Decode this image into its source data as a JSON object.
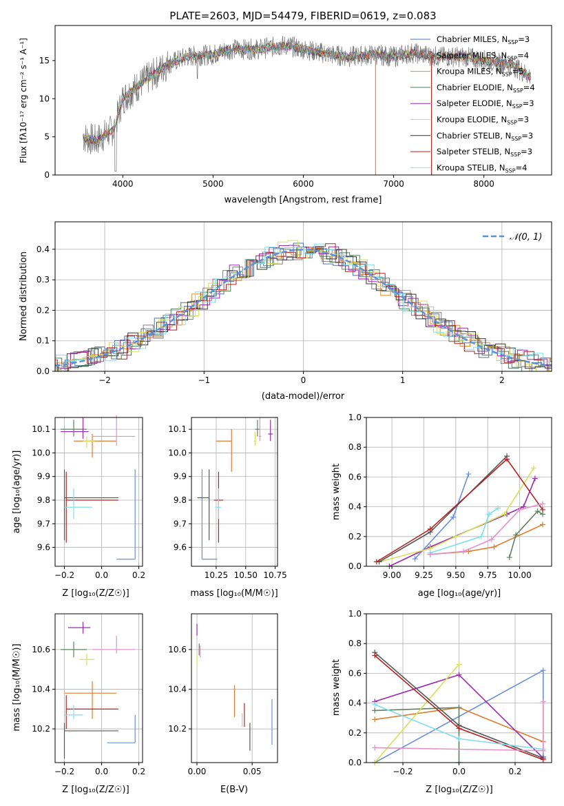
{
  "chart_data": [
    {
      "type": "line",
      "title": "PLATE=2603, MJD=54479, FIBERID=0619, z=0.083",
      "xlabel": "wavelength [Angstrom, rest frame]",
      "ylabel": "Flux [fλ10⁻¹⁷ erg cm⁻² s⁻¹ A⁻¹]",
      "xlim": [
        3250,
        8750
      ],
      "ylim": [
        0,
        19.6
      ],
      "xticks": [
        "4000",
        "5000",
        "6000",
        "7000",
        "8000"
      ],
      "yticks": [
        "0",
        "5",
        "10",
        "15"
      ],
      "legend": "upper right",
      "series": [
        {
          "name": "Chabrier MILES, N_SSP=3",
          "color": "#4c72b0"
        },
        {
          "name": "Salpeter MILES, N_SSP=4",
          "color": "#7f7f7f"
        },
        {
          "name": "Kroupa MILES, N_SSP=5",
          "color": "#e08b2c"
        },
        {
          "name": "Chabrier ELODIE, N_SSP=4",
          "color": "#4e7d5b"
        },
        {
          "name": "Salpeter ELODIE, N_SSP=3",
          "color": "#9c27b0"
        },
        {
          "name": "Kroupa ELODIE, N_SSP=3",
          "color": "#d4e157"
        },
        {
          "name": "Chabrier STELIB, N_SSP=3",
          "color": "#333333"
        },
        {
          "name": "Salpeter STELIB, N_SSP=3",
          "color": "#b22222"
        },
        {
          "name": "Kroupa STELIB, N_SSP=4",
          "color": "#80deea"
        }
      ],
      "x": [
        3550,
        3700,
        3900,
        4000,
        4200,
        4500,
        4700,
        5000,
        5200,
        5500,
        5800,
        6000,
        6300,
        6500,
        6800,
        7000,
        7200,
        7500,
        7800,
        8000,
        8300,
        8500
      ],
      "values": [
        5,
        4.5,
        6,
        10,
        12,
        14.5,
        15.5,
        15.8,
        16.5,
        16.5,
        17,
        16.5,
        15.8,
        15.5,
        15.8,
        15.5,
        16,
        15.5,
        15.5,
        15,
        14.5,
        13
      ]
    },
    {
      "type": "bar",
      "xlabel": "(data-model)/error",
      "ylabel": "Normed distribution",
      "xlim": [
        -2.5,
        2.5
      ],
      "ylim": [
        0,
        0.49
      ],
      "xticks": [
        "−2",
        "−1",
        "0",
        "1",
        "2"
      ],
      "yticks": [
        "0.0",
        "0.1",
        "0.2",
        "0.3",
        "0.4"
      ],
      "legend_label": "𝒩(0, 1)",
      "legend": "upper right",
      "gaussian": {
        "mean": 0,
        "sigma": 1
      }
    },
    {
      "type": "scatter",
      "xlabel": "Z [log₁₀(Z/Z☉)]",
      "ylabel": "age  [log₁₀(age/yr)]",
      "xlim": [
        -0.25,
        0.22
      ],
      "ylim": [
        9.52,
        10.15
      ],
      "xticks": [
        "−0.2",
        "0.0",
        "0.2"
      ],
      "yticks": [
        "9.6",
        "9.7",
        "9.8",
        "9.9",
        "10.0",
        "10.1"
      ],
      "points": [
        {
          "color": "#6a8fd8",
          "x": 0.18,
          "y": 9.55,
          "xerr": [
            0.1,
            0
          ],
          "yerr": [
            0,
            0.38
          ]
        },
        {
          "color": "#e07b2c",
          "x": -0.05,
          "y": 10.05,
          "xerr": [
            0.1,
            0.13
          ],
          "yerr": [
            0.07,
            0.03
          ]
        },
        {
          "color": "#5e8061",
          "x": -0.15,
          "y": 10.1,
          "xerr": [
            0.07,
            0.07
          ],
          "yerr": [
            0.03,
            0.04
          ]
        },
        {
          "color": "#9c27b0",
          "x": -0.1,
          "y": 10.09,
          "xerr": [
            0.12,
            0.03
          ],
          "yerr": [
            0.03,
            0.06
          ]
        },
        {
          "color": "#d4e157",
          "x": -0.08,
          "y": 10.05,
          "xerr": [
            0.02,
            0.04
          ],
          "yerr": [
            0.03,
            0.02
          ]
        },
        {
          "color": "#555555",
          "x": -0.2,
          "y": 9.81,
          "xerr": [
            0.0,
            0.29
          ],
          "yerr": [
            0.18,
            0.12
          ]
        },
        {
          "color": "#b22222",
          "x": -0.19,
          "y": 9.8,
          "xerr": [
            0.0,
            0.28
          ],
          "yerr": [
            0.18,
            0.12
          ]
        },
        {
          "color": "#80deea",
          "x": -0.15,
          "y": 9.77,
          "xerr": [
            0.05,
            0.1
          ],
          "yerr": [
            0.05,
            0.08
          ]
        },
        {
          "color": "#e58fc8",
          "x": 0.08,
          "y": 10.07,
          "xerr": [
            0.13,
            0.1
          ],
          "yerr": [
            0.04,
            0.09
          ]
        }
      ]
    },
    {
      "type": "scatter",
      "xlabel": "mass [log₁₀(M/M☉)]",
      "ylabel": "",
      "xlim": [
        10.04,
        10.77
      ],
      "ylim": [
        9.52,
        10.15
      ],
      "xticks": [
        "10.25",
        "10.50",
        "10.75"
      ],
      "yticks": [
        "9.6",
        "9.7",
        "9.8",
        "9.9",
        "10.0",
        "10.1"
      ],
      "points": [
        {
          "color": "#6a8fd8",
          "x": 10.13,
          "y": 9.55,
          "xerr": [
            0,
            0.13
          ],
          "yerr": [
            0,
            0.38
          ]
        },
        {
          "color": "#e07b2c",
          "x": 10.38,
          "y": 10.05,
          "xerr": [
            0.13,
            0
          ],
          "yerr": [
            0.13,
            0.05
          ]
        },
        {
          "color": "#5e8061",
          "x": 10.6,
          "y": 10.1,
          "xerr": [
            0.02,
            0.02
          ],
          "yerr": [
            0.03,
            0.04
          ]
        },
        {
          "color": "#9c27b0",
          "x": 10.71,
          "y": 10.08,
          "xerr": [
            0.02,
            0.02
          ],
          "yerr": [
            0.03,
            0.06
          ]
        },
        {
          "color": "#d4e157",
          "x": 10.58,
          "y": 10.05,
          "xerr": [
            0.01,
            0.01
          ],
          "yerr": [
            0.02,
            0.04
          ]
        },
        {
          "color": "#555555",
          "x": 10.19,
          "y": 9.81,
          "xerr": [
            0.1,
            0
          ],
          "yerr": [
            0.18,
            0.12
          ]
        },
        {
          "color": "#b22222",
          "x": 10.27,
          "y": 9.8,
          "xerr": [
            0.04,
            0.04
          ],
          "yerr": [
            0.18,
            0.12
          ]
        },
        {
          "color": "#80deea",
          "x": 10.27,
          "y": 9.77,
          "xerr": [
            0.03,
            0.02
          ],
          "yerr": [
            0.05,
            0.08
          ]
        },
        {
          "color": "#e58fc8",
          "x": 10.62,
          "y": 10.07,
          "xerr": [
            0.01,
            0.01
          ],
          "yerr": [
            0.02,
            0.08
          ]
        }
      ]
    },
    {
      "type": "line",
      "xlabel": "age  [log₁₀(age/yr)]",
      "ylabel": "mass weight",
      "xlim": [
        8.8,
        10.25
      ],
      "ylim": [
        0,
        1.0
      ],
      "xticks": [
        "9.00",
        "9.25",
        "9.50",
        "9.75",
        "10.00"
      ],
      "yticks": [
        "0.0",
        "0.2",
        "0.4",
        "0.6",
        "0.8",
        "1.0"
      ],
      "series": [
        {
          "color": "#6a8fd8",
          "x": [
            9.18,
            9.48,
            9.6
          ],
          "y": [
            0.05,
            0.33,
            0.62
          ]
        },
        {
          "color": "#e07b2c",
          "x": [
            9.3,
            9.6,
            9.8,
            10.18
          ],
          "y": [
            0.08,
            0.1,
            0.13,
            0.28
          ]
        },
        {
          "color": "#5e8061",
          "x": [
            9.92,
            9.97,
            10.14,
            10.18
          ],
          "y": [
            0.06,
            0.21,
            0.37,
            0.35
          ]
        },
        {
          "color": "#9c27b0",
          "x": [
            8.98,
            9.3,
            9.9,
            10.03,
            10.12
          ],
          "y": [
            0.0,
            0.13,
            0.35,
            0.4,
            0.59
          ]
        },
        {
          "color": "#d4e157",
          "x": [
            8.9,
            9.3,
            9.5,
            9.88,
            10.11
          ],
          "y": [
            0.03,
            0.12,
            0.2,
            0.35,
            0.66
          ]
        },
        {
          "color": "#555555",
          "x": [
            8.9,
            9.3,
            9.9
          ],
          "y": [
            0.03,
            0.23,
            0.74
          ]
        },
        {
          "color": "#b22222",
          "x": [
            8.88,
            9.3,
            9.9,
            10.18
          ],
          "y": [
            0.03,
            0.25,
            0.72,
            0.38
          ]
        },
        {
          "color": "#80deea",
          "x": [
            9.3,
            9.7,
            9.76,
            9.83
          ],
          "y": [
            0.09,
            0.2,
            0.35,
            0.39
          ]
        },
        {
          "color": "#e58fc8",
          "x": [
            9.3,
            9.56,
            9.78,
            10.0,
            10.18
          ],
          "y": [
            0.08,
            0.1,
            0.18,
            0.38,
            0.42
          ]
        }
      ]
    },
    {
      "type": "scatter",
      "xlabel": "Z [log₁₀(Z/Z☉)]",
      "ylabel": "mass [log₁₀(M/M☉)]",
      "xlim": [
        -0.25,
        0.22
      ],
      "ylim": [
        10.03,
        10.78
      ],
      "xticks": [
        "−0.2",
        "0.0",
        "0.2"
      ],
      "yticks": [
        "10.2",
        "10.4",
        "10.6"
      ],
      "points": [
        {
          "color": "#6a8fd8",
          "x": 0.18,
          "y": 10.13,
          "xerr": [
            0.15,
            0
          ],
          "yerr": [
            0,
            0.14
          ]
        },
        {
          "color": "#e07b2c",
          "x": -0.05,
          "y": 10.38,
          "xerr": [
            0.15,
            0.13
          ],
          "yerr": [
            0.13,
            0.06
          ]
        },
        {
          "color": "#5e8061",
          "x": -0.15,
          "y": 10.6,
          "xerr": [
            0.07,
            0.07
          ],
          "yerr": [
            0.04,
            0.04
          ]
        },
        {
          "color": "#9c27b0",
          "x": -0.1,
          "y": 10.71,
          "xerr": [
            0.08,
            0.04
          ],
          "yerr": [
            0.03,
            0.03
          ]
        },
        {
          "color": "#d4e157",
          "x": -0.08,
          "y": 10.55,
          "xerr": [
            0.04,
            0.04
          ],
          "yerr": [
            0.03,
            0.03
          ]
        },
        {
          "color": "#555555",
          "x": -0.2,
          "y": 10.19,
          "xerr": [
            0.0,
            0.29
          ],
          "yerr": [
            0.14,
            0.04
          ]
        },
        {
          "color": "#b22222",
          "x": -0.19,
          "y": 10.3,
          "xerr": [
            0.0,
            0.28
          ],
          "yerr": [
            0.1,
            0.07
          ]
        },
        {
          "color": "#80deea",
          "x": -0.15,
          "y": 10.27,
          "xerr": [
            0.05,
            0.05
          ],
          "yerr": [
            0.02,
            0.05
          ]
        },
        {
          "color": "#e58fc8",
          "x": 0.08,
          "y": 10.6,
          "xerr": [
            0.13,
            0.1
          ],
          "yerr": [
            0.02,
            0.07
          ]
        }
      ]
    },
    {
      "type": "scatter",
      "xlabel": "E(B-V)",
      "ylabel": "",
      "xlim": [
        -0.005,
        0.073
      ],
      "ylim": [
        10.03,
        10.78
      ],
      "xticks": [
        "0.00",
        "0.05"
      ],
      "yticks": [
        "10.2",
        "10.4",
        "10.6"
      ],
      "points": [
        {
          "color": "#6a8fd8",
          "x": 0.068,
          "y": 10.2,
          "yerr": [
            0.08,
            0.15
          ]
        },
        {
          "color": "#e07b2c",
          "x": 0.034,
          "y": 10.34,
          "yerr": [
            0.08,
            0.08
          ]
        },
        {
          "color": "#5e8061",
          "x": 0.002,
          "y": 10.6,
          "yerr": [
            0.03,
            0.03
          ]
        },
        {
          "color": "#9c27b0",
          "x": 0.0,
          "y": 10.7,
          "yerr": [
            0.03,
            0.03
          ]
        },
        {
          "color": "#d4e157",
          "x": 0.0,
          "y": 10.55,
          "yerr": [
            0.03,
            0.03
          ]
        },
        {
          "color": "#555555",
          "x": 0.048,
          "y": 10.15,
          "yerr": [
            0.06,
            0.08
          ]
        },
        {
          "color": "#b22222",
          "x": 0.043,
          "y": 10.27,
          "yerr": [
            0.06,
            0.06
          ]
        },
        {
          "color": "#80deea",
          "x": 0.041,
          "y": 10.24,
          "yerr": [
            0.03,
            0.04
          ]
        },
        {
          "color": "#e58fc8",
          "x": 0.003,
          "y": 10.59,
          "yerr": [
            0.03,
            0.03
          ]
        }
      ]
    },
    {
      "type": "line",
      "xlabel": "Z [log₁₀(Z/Z☉)]",
      "ylabel": "mass weight",
      "xlim": [
        -0.33,
        0.33
      ],
      "ylim": [
        0,
        1.0
      ],
      "xticks": [
        "−0.2",
        "0.0",
        "0.2"
      ],
      "yticks": [
        "0.0",
        "0.2",
        "0.4",
        "0.6",
        "0.8",
        "1.0"
      ],
      "series": [
        {
          "color": "#6a8fd8",
          "x": [
            -0.3,
            0.3,
            0.3
          ],
          "y": [
            0.0,
            0.62,
            0.04
          ]
        },
        {
          "color": "#e07b2c",
          "x": [
            -0.3,
            0.0,
            0.3
          ],
          "y": [
            0.29,
            0.37,
            0.14
          ]
        },
        {
          "color": "#5e8061",
          "x": [
            -0.3,
            0.0,
            0.0
          ],
          "y": [
            0.35,
            0.37,
            0.0
          ]
        },
        {
          "color": "#9c27b0",
          "x": [
            -0.3,
            0.0,
            0.3
          ],
          "y": [
            0.41,
            0.59,
            0.03
          ]
        },
        {
          "color": "#d4e157",
          "x": [
            -0.3,
            0.0
          ],
          "y": [
            0.0,
            0.66
          ]
        },
        {
          "color": "#555555",
          "x": [
            -0.3,
            0.0,
            0.3
          ],
          "y": [
            0.74,
            0.25,
            0.03
          ]
        },
        {
          "color": "#b22222",
          "x": [
            -0.3,
            0.0,
            0.3
          ],
          "y": [
            0.72,
            0.23,
            0.02
          ]
        },
        {
          "color": "#80deea",
          "x": [
            -0.3,
            0.0,
            0.3
          ],
          "y": [
            0.39,
            0.16,
            0.09
          ]
        },
        {
          "color": "#e58fc8",
          "x": [
            -0.3,
            0.3,
            0.3
          ],
          "y": [
            0.1,
            0.08,
            0.41
          ]
        }
      ]
    }
  ]
}
